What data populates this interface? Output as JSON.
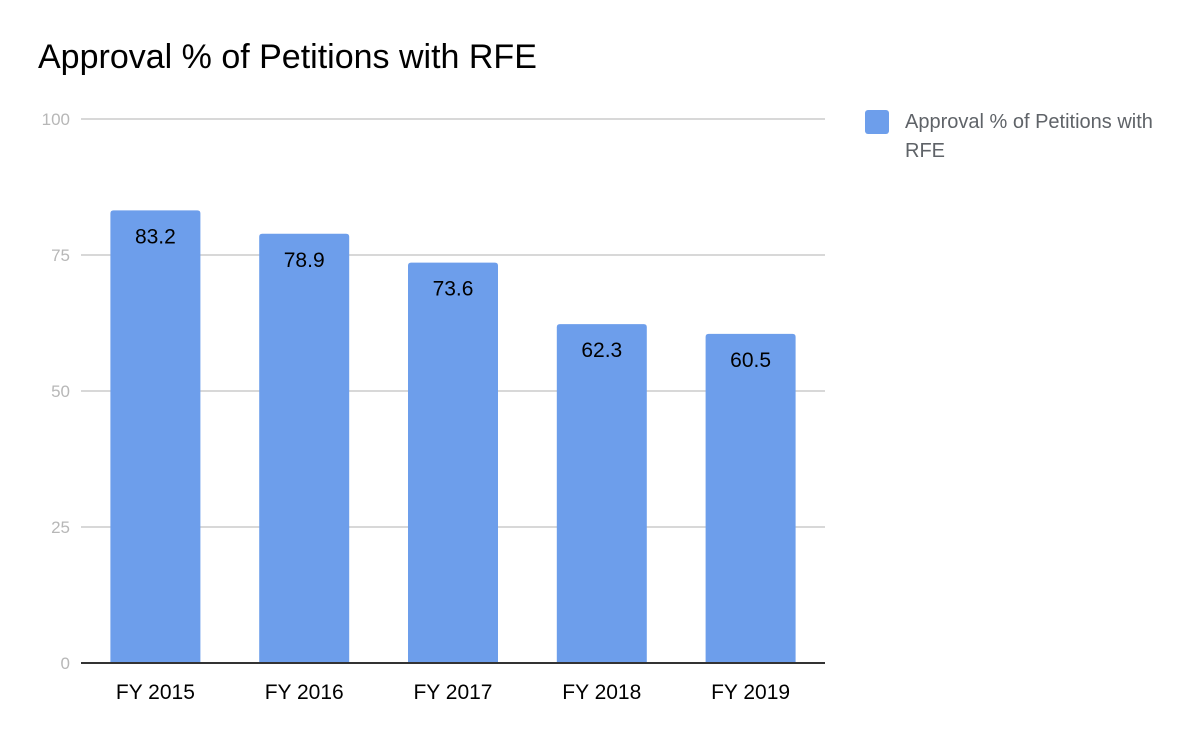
{
  "chart_data": {
    "type": "bar",
    "title": "Approval % of Petitions with RFE",
    "categories": [
      "FY 2015",
      "FY 2016",
      "FY 2017",
      "FY 2018",
      "FY 2019"
    ],
    "series": [
      {
        "name": "Approval % of Petitions with RFE",
        "values": [
          83.2,
          78.9,
          73.6,
          62.3,
          60.5
        ],
        "color": "#6d9eeb"
      }
    ],
    "data_labels": [
      "83.2",
      "78.9",
      "73.6",
      "62.3",
      "60.5"
    ],
    "y_ticks": [
      "0",
      "25",
      "50",
      "75",
      "100"
    ],
    "ylim": [
      0,
      100
    ],
    "xlabel": "",
    "ylabel": "",
    "grid": true,
    "legend_position": "right"
  },
  "colors": {
    "bar": "#6d9eeb",
    "grid": "#cccccc",
    "axis": "#333333",
    "tick_label": "#b7b7b7",
    "legend_text": "#5f6368"
  }
}
